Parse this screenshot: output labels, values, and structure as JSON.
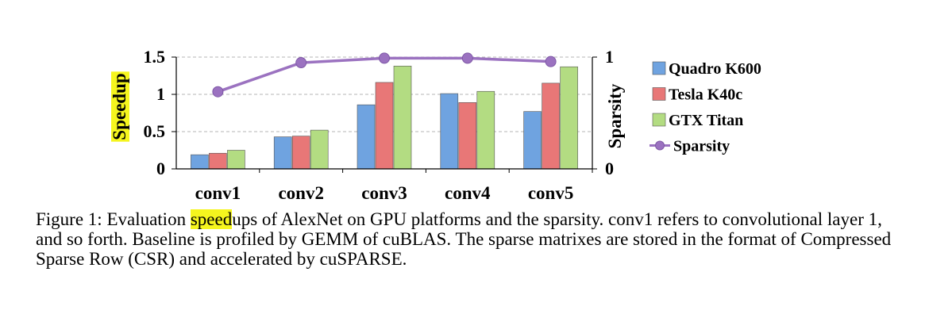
{
  "chart_data": {
    "type": "bar",
    "categories": [
      "conv1",
      "conv2",
      "conv3",
      "conv4",
      "conv5"
    ],
    "series": [
      {
        "name": "Quadro K600",
        "values": [
          0.19,
          0.43,
          0.86,
          1.01,
          0.77
        ],
        "color": "#6fa3e0"
      },
      {
        "name": "Tesla K40c",
        "values": [
          0.21,
          0.44,
          1.16,
          0.89,
          1.15
        ],
        "color": "#e87777"
      },
      {
        "name": "GTX Titan",
        "values": [
          0.25,
          0.52,
          1.38,
          1.04,
          1.37
        ],
        "color": "#b3dc82"
      }
    ],
    "line_series": {
      "name": "Sparsity",
      "values": [
        0.69,
        0.95,
        0.99,
        0.99,
        0.96
      ],
      "color": "#9b72c0",
      "axis": "right"
    },
    "ylabel": "Speedup",
    "ylabel_highlight": true,
    "y2label": "Sparsity",
    "ylim": [
      0,
      1.5
    ],
    "y2lim": [
      0,
      1
    ],
    "yticks": [
      "0",
      "0.5",
      "1",
      "1.5"
    ],
    "y2ticks": [
      "0",
      "1"
    ],
    "grid": "dashed horizontal",
    "legend_position": "right"
  },
  "caption": {
    "prefix": "Figure 1: Evaluation ",
    "highlight": "speed",
    "rest": "ups of AlexNet on GPU platforms and the sparsity.  conv1 refers to convolutional layer 1, and so forth. Baseline is profiled by GEMM of cuBLAS. The sparse matrixes are stored in the format of Compressed Sparse Row (CSR) and accelerated by cuSPARSE."
  }
}
